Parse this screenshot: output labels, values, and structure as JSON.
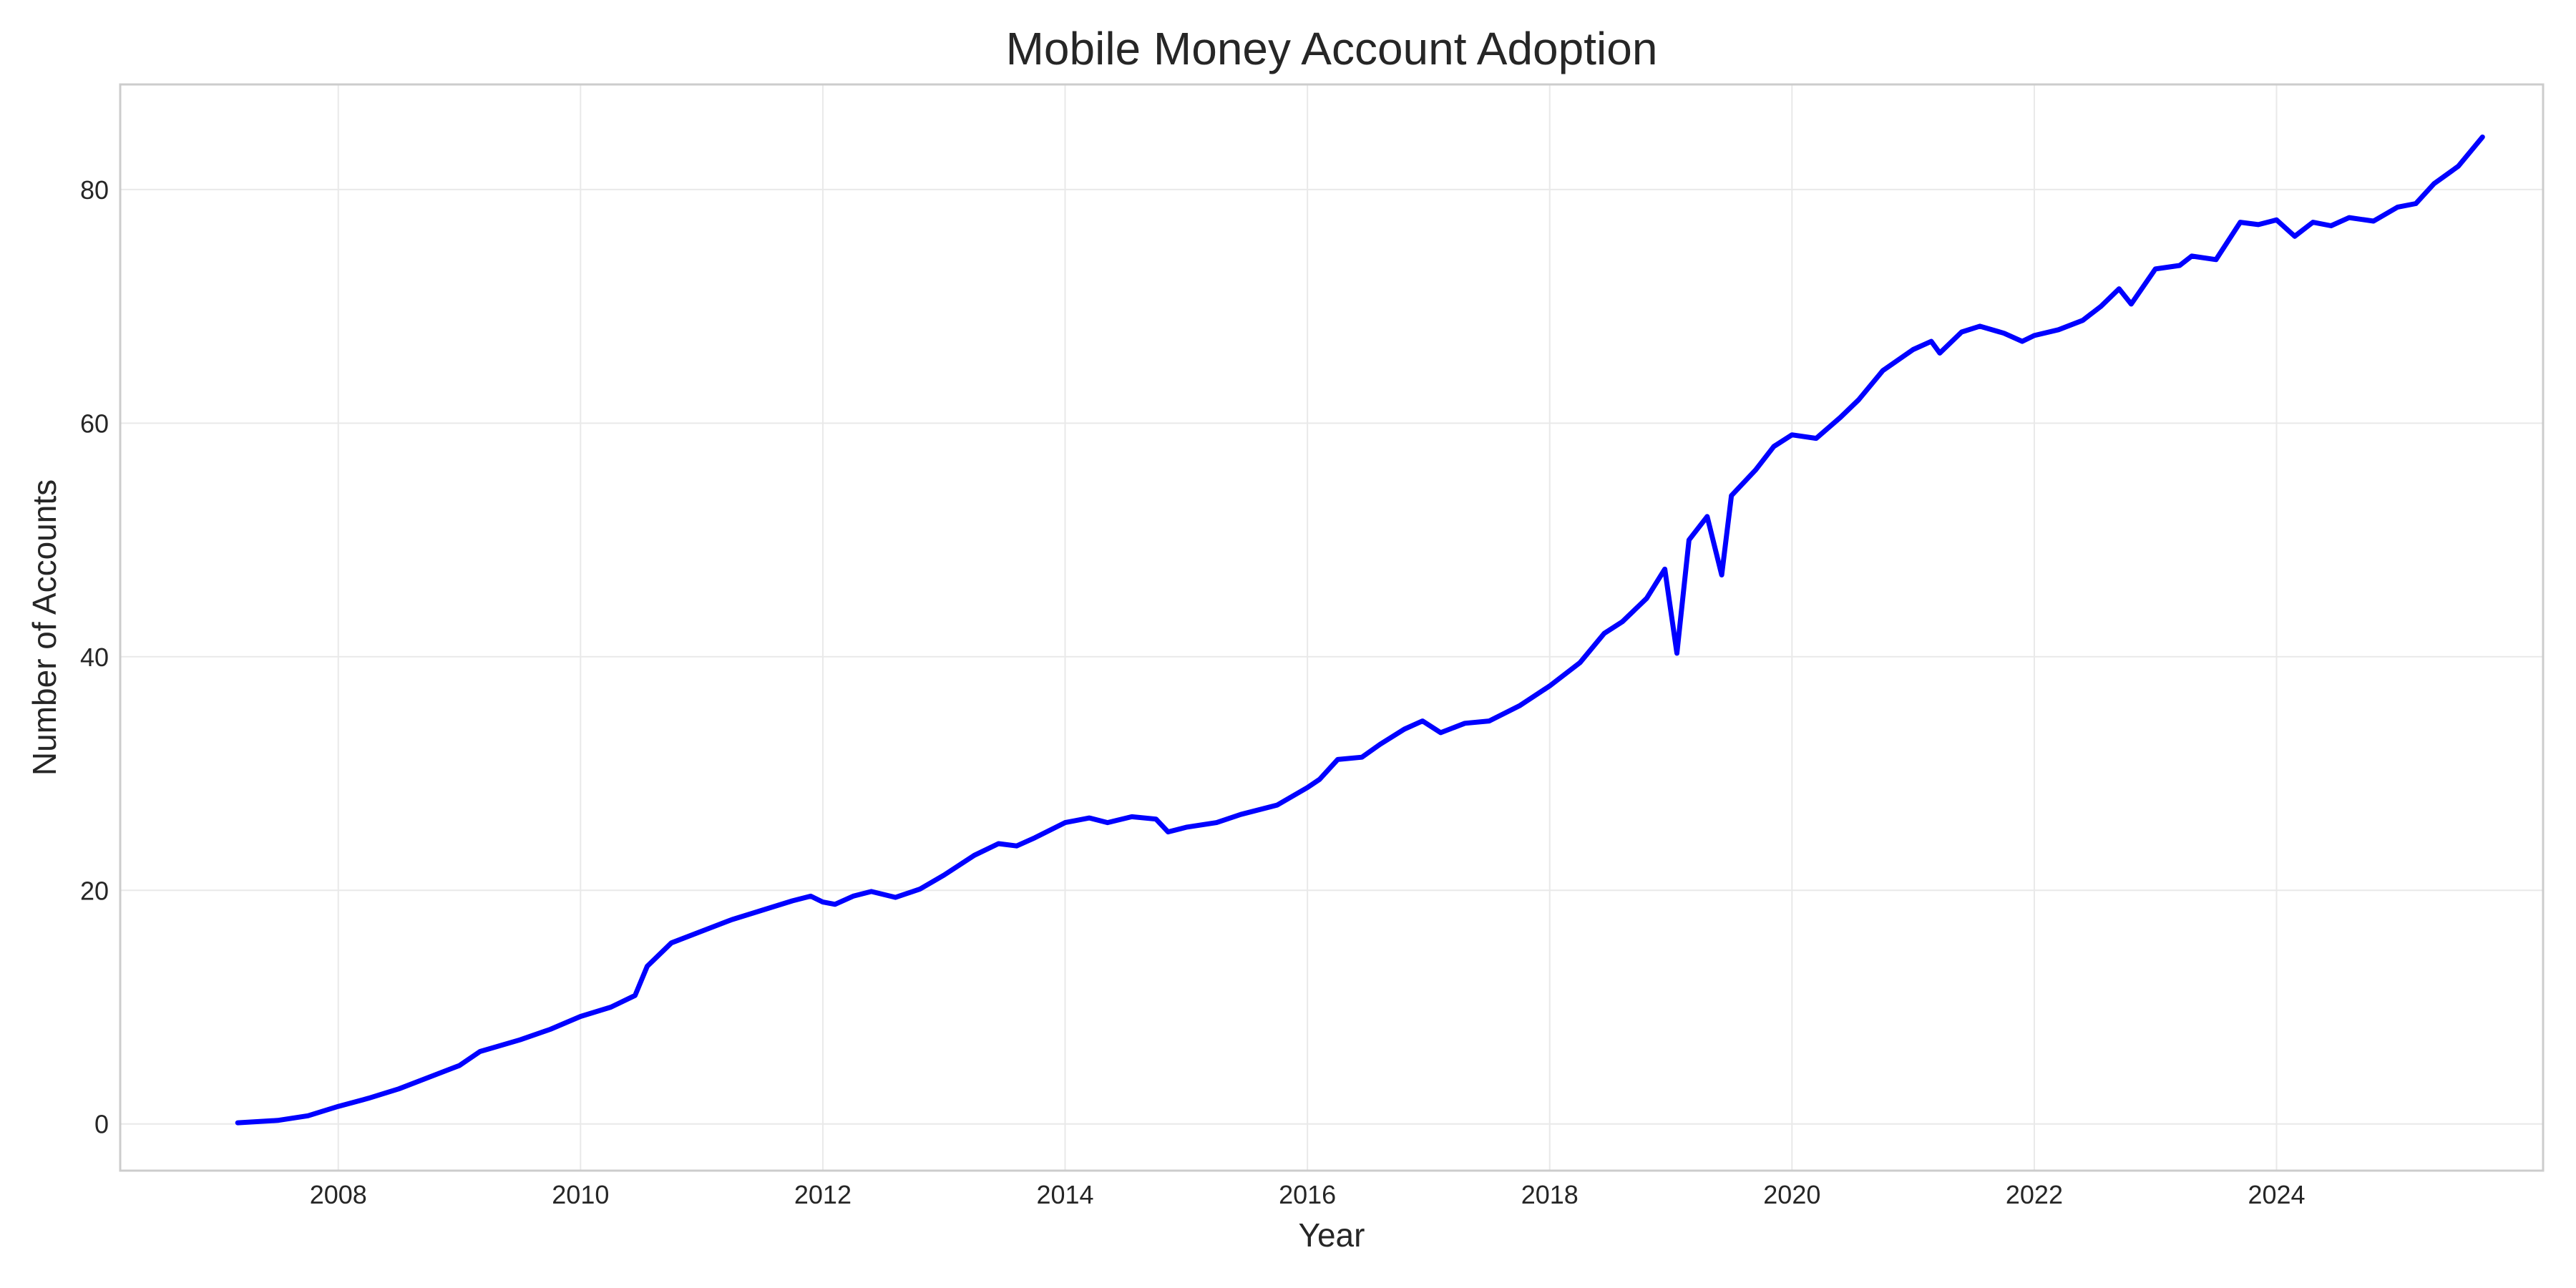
{
  "chart_data": {
    "type": "line",
    "title": "Mobile Money Account Adoption",
    "xlabel": "Year",
    "ylabel": "Number of Accounts",
    "xlim": [
      2006.2,
      2026.2
    ],
    "ylim": [
      -4,
      89
    ],
    "xticks": [
      "2008",
      "2010",
      "2012",
      "2014",
      "2016",
      "2018",
      "2020",
      "2022",
      "2024"
    ],
    "yticks": [
      "0",
      "20",
      "40",
      "60",
      "80"
    ],
    "grid": true,
    "legend": "none",
    "series": [
      {
        "color": "#0000ff",
        "points": [
          [
            2007.17,
            0.1
          ],
          [
            2007.5,
            0.3
          ],
          [
            2007.75,
            0.7
          ],
          [
            2008.0,
            1.5
          ],
          [
            2008.25,
            2.2
          ],
          [
            2008.5,
            3.0
          ],
          [
            2008.75,
            4.0
          ],
          [
            2009.0,
            5.0
          ],
          [
            2009.17,
            6.2
          ],
          [
            2009.5,
            7.2
          ],
          [
            2009.75,
            8.1
          ],
          [
            2010.0,
            9.2
          ],
          [
            2010.25,
            10.0
          ],
          [
            2010.45,
            11.0
          ],
          [
            2010.55,
            13.5
          ],
          [
            2010.75,
            15.5
          ],
          [
            2011.0,
            16.5
          ],
          [
            2011.25,
            17.5
          ],
          [
            2011.5,
            18.3
          ],
          [
            2011.75,
            19.1
          ],
          [
            2011.9,
            19.5
          ],
          [
            2012.0,
            19.0
          ],
          [
            2012.1,
            18.8
          ],
          [
            2012.25,
            19.5
          ],
          [
            2012.4,
            19.9
          ],
          [
            2012.6,
            19.4
          ],
          [
            2012.8,
            20.1
          ],
          [
            2013.0,
            21.3
          ],
          [
            2013.25,
            23.0
          ],
          [
            2013.45,
            24.0
          ],
          [
            2013.6,
            23.8
          ],
          [
            2013.75,
            24.5
          ],
          [
            2014.0,
            25.8
          ],
          [
            2014.2,
            26.2
          ],
          [
            2014.35,
            25.8
          ],
          [
            2014.55,
            26.3
          ],
          [
            2014.75,
            26.1
          ],
          [
            2014.85,
            25.0
          ],
          [
            2015.0,
            25.4
          ],
          [
            2015.25,
            25.8
          ],
          [
            2015.45,
            26.5
          ],
          [
            2015.75,
            27.3
          ],
          [
            2016.0,
            28.8
          ],
          [
            2016.1,
            29.5
          ],
          [
            2016.25,
            31.2
          ],
          [
            2016.45,
            31.4
          ],
          [
            2016.6,
            32.5
          ],
          [
            2016.8,
            33.8
          ],
          [
            2016.95,
            34.5
          ],
          [
            2017.1,
            33.5
          ],
          [
            2017.3,
            34.3
          ],
          [
            2017.5,
            34.5
          ],
          [
            2017.75,
            35.8
          ],
          [
            2018.0,
            37.5
          ],
          [
            2018.25,
            39.5
          ],
          [
            2018.45,
            42.0
          ],
          [
            2018.6,
            43.0
          ],
          [
            2018.8,
            45.0
          ],
          [
            2018.95,
            47.5
          ],
          [
            2019.05,
            40.3
          ],
          [
            2019.15,
            50.0
          ],
          [
            2019.3,
            52.0
          ],
          [
            2019.42,
            47.0
          ],
          [
            2019.5,
            53.8
          ],
          [
            2019.7,
            56.0
          ],
          [
            2019.85,
            58.0
          ],
          [
            2020.0,
            59.0
          ],
          [
            2020.2,
            58.7
          ],
          [
            2020.4,
            60.5
          ],
          [
            2020.55,
            62.0
          ],
          [
            2020.75,
            64.5
          ],
          [
            2021.0,
            66.3
          ],
          [
            2021.15,
            67.0
          ],
          [
            2021.22,
            66.0
          ],
          [
            2021.4,
            67.8
          ],
          [
            2021.55,
            68.3
          ],
          [
            2021.75,
            67.7
          ],
          [
            2021.9,
            67.0
          ],
          [
            2022.0,
            67.5
          ],
          [
            2022.2,
            68.0
          ],
          [
            2022.4,
            68.8
          ],
          [
            2022.55,
            70.0
          ],
          [
            2022.7,
            71.5
          ],
          [
            2022.8,
            70.2
          ],
          [
            2023.0,
            73.2
          ],
          [
            2023.2,
            73.5
          ],
          [
            2023.3,
            74.3
          ],
          [
            2023.5,
            74.0
          ],
          [
            2023.7,
            77.2
          ],
          [
            2023.85,
            77.0
          ],
          [
            2024.0,
            77.4
          ],
          [
            2024.15,
            76.0
          ],
          [
            2024.3,
            77.2
          ],
          [
            2024.45,
            76.9
          ],
          [
            2024.6,
            77.6
          ],
          [
            2024.8,
            77.3
          ],
          [
            2025.0,
            78.5
          ],
          [
            2025.15,
            78.8
          ],
          [
            2025.3,
            80.5
          ],
          [
            2025.5,
            82.0
          ],
          [
            2025.7,
            84.5
          ]
        ]
      }
    ]
  }
}
